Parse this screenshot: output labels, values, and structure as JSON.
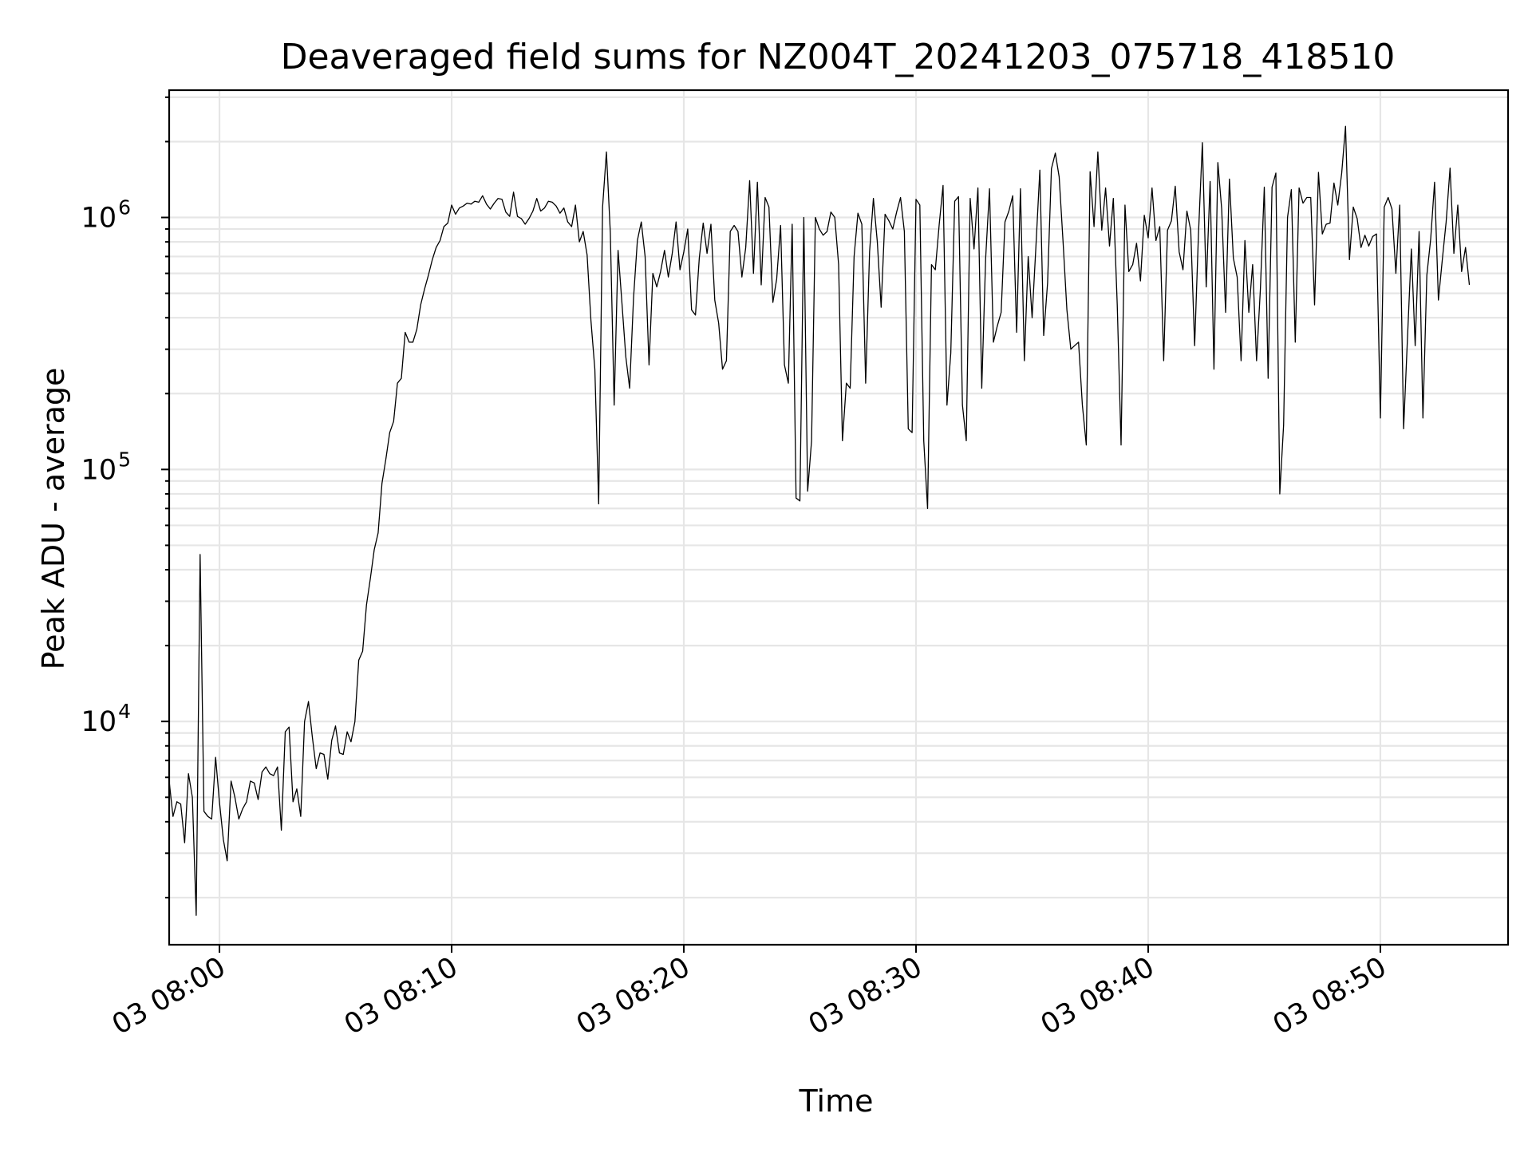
{
  "chart_data": {
    "type": "line",
    "title": "Deaveraged field sums for NZ004T_20241203_075718_418510",
    "xlabel": "Time",
    "ylabel": "Peak ADU - average",
    "yscale": "log",
    "xlim": [
      "2024-12-03 07:57:50",
      "2024-12-03 08:55:30"
    ],
    "ylim": [
      1300,
      3200000
    ],
    "x_ticks": [
      {
        "t": "2024-12-03 08:00:00",
        "label": "03 08:00"
      },
      {
        "t": "2024-12-03 08:10:00",
        "label": "03 08:10"
      },
      {
        "t": "2024-12-03 08:20:00",
        "label": "03 08:20"
      },
      {
        "t": "2024-12-03 08:30:00",
        "label": "03 08:30"
      },
      {
        "t": "2024-12-03 08:40:00",
        "label": "03 08:40"
      },
      {
        "t": "2024-12-03 08:50:00",
        "label": "03 08:50"
      }
    ],
    "y_ticks": [
      {
        "value": 10000,
        "base": "10",
        "exp": "4"
      },
      {
        "value": 100000,
        "base": "10",
        "exp": "5"
      },
      {
        "value": 1000000,
        "base": "10",
        "exp": "6"
      }
    ],
    "grid": true,
    "line_color": "#000000",
    "series": [
      {
        "x_start": "2024-12-03 07:57:50",
        "x_step_seconds": 10,
        "values": [
          5800,
          4200,
          4800,
          4700,
          3300,
          6200,
          5000,
          1700,
          46000,
          4400,
          4200,
          4100,
          7200,
          4800,
          3400,
          2800,
          5800,
          5000,
          4100,
          4500,
          4800,
          5800,
          5700,
          4900,
          6300,
          6600,
          6200,
          6100,
          6600,
          3700,
          9100,
          9500,
          4800,
          5400,
          4200,
          10000,
          12000,
          8700,
          6500,
          7500,
          7400,
          5900,
          8400,
          9600,
          7500,
          7400,
          9100,
          8300,
          10000,
          17500,
          19000,
          29000,
          37000,
          48000,
          56000,
          88000,
          110000,
          140000,
          155000,
          220000,
          230000,
          350000,
          320000,
          320000,
          360000,
          450000,
          520000,
          590000,
          680000,
          760000,
          810000,
          920000,
          950000,
          1120000,
          1030000,
          1090000,
          1110000,
          1140000,
          1130000,
          1160000,
          1150000,
          1220000,
          1130000,
          1080000,
          1140000,
          1190000,
          1180000,
          1050000,
          1010000,
          1260000,
          1010000,
          990000,
          940000,
          990000,
          1060000,
          1190000,
          1060000,
          1090000,
          1160000,
          1150000,
          1110000,
          1040000,
          1090000,
          960000,
          920000,
          1120000,
          800000,
          880000,
          710000,
          390000,
          250000,
          73000,
          1100000,
          1820000,
          870000,
          180000,
          740000,
          460000,
          280000,
          210000,
          480000,
          810000,
          960000,
          700000,
          260000,
          600000,
          530000,
          610000,
          740000,
          580000,
          720000,
          960000,
          620000,
          730000,
          900000,
          430000,
          410000,
          690000,
          950000,
          720000,
          940000,
          470000,
          380000,
          250000,
          270000,
          880000,
          930000,
          880000,
          580000,
          760000,
          1400000,
          600000,
          1380000,
          540000,
          1200000,
          1100000,
          460000,
          570000,
          930000,
          260000,
          220000,
          940000,
          77000,
          75000,
          1000000,
          82000,
          130000,
          1000000,
          900000,
          850000,
          880000,
          1050000,
          1000000,
          650000,
          130000,
          220000,
          210000,
          700000,
          1040000,
          940000,
          220000,
          730000,
          1190000,
          800000,
          440000,
          1030000,
          970000,
          900000,
          1050000,
          1200000,
          880000,
          145000,
          140000,
          1180000,
          1120000,
          130000,
          70000,
          650000,
          620000,
          940000,
          1340000,
          180000,
          290000,
          1160000,
          1210000,
          180000,
          130000,
          1190000,
          750000,
          1310000,
          210000,
          690000,
          1300000,
          320000,
          370000,
          420000,
          960000,
          1060000,
          1220000,
          350000,
          1300000,
          270000,
          700000,
          400000,
          770000,
          1540000,
          340000,
          550000,
          1560000,
          1800000,
          1450000,
          800000,
          430000,
          300000,
          310000,
          320000,
          180000,
          125000,
          1520000,
          920000,
          1820000,
          890000,
          1310000,
          770000,
          1190000,
          450000,
          125000,
          1120000,
          610000,
          650000,
          790000,
          560000,
          1020000,
          830000,
          1310000,
          810000,
          920000,
          270000,
          890000,
          970000,
          1330000,
          730000,
          620000,
          1060000,
          890000,
          310000,
          860000,
          1980000,
          530000,
          1390000,
          250000,
          1650000,
          1080000,
          420000,
          1420000,
          690000,
          580000,
          270000,
          810000,
          420000,
          650000,
          270000,
          520000,
          1320000,
          230000,
          1320000,
          1500000,
          80000,
          150000,
          1000000,
          1290000,
          320000,
          1310000,
          1140000,
          1200000,
          1200000,
          450000,
          1510000,
          860000,
          940000,
          950000,
          1370000,
          1120000,
          1500000,
          2300000,
          680000,
          1100000,
          990000,
          760000,
          850000,
          770000,
          840000,
          860000,
          160000,
          1100000,
          1200000,
          1080000,
          600000,
          1120000,
          145000,
          330000,
          750000,
          310000,
          880000,
          160000,
          590000,
          820000,
          1380000,
          470000,
          680000,
          960000,
          1570000,
          720000,
          1120000,
          610000,
          760000,
          540000
        ]
      }
    ]
  }
}
